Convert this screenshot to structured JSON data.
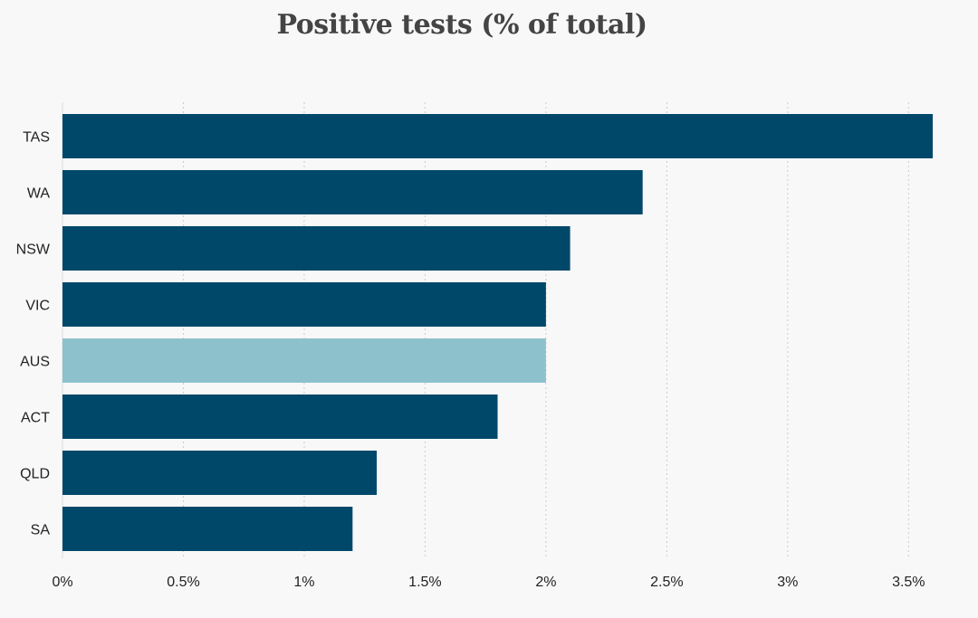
{
  "chart_data": {
    "type": "bar",
    "orientation": "horizontal",
    "title": "Positive tests (% of total)",
    "xlabel": "",
    "ylabel": "",
    "categories": [
      "TAS",
      "WA",
      "NSW",
      "VIC",
      "AUS",
      "ACT",
      "QLD",
      "SA"
    ],
    "values": [
      3.6,
      2.4,
      2.1,
      2.0,
      2.0,
      1.8,
      1.3,
      1.2
    ],
    "highlight": "AUS",
    "colors": {
      "bar": "#00486a",
      "highlight": "#8dc2cc",
      "grid": "#cccccc"
    },
    "xlim": [
      0,
      3.6
    ],
    "xticks": [
      {
        "value": 0,
        "label": "0%"
      },
      {
        "value": 0.5,
        "label": "0.5%"
      },
      {
        "value": 1,
        "label": "1%"
      },
      {
        "value": 1.5,
        "label": "1.5%"
      },
      {
        "value": 2,
        "label": "2%"
      },
      {
        "value": 2.5,
        "label": "2.5%"
      },
      {
        "value": 3,
        "label": "3%"
      },
      {
        "value": 3.5,
        "label": "3.5%"
      }
    ],
    "grid": true
  }
}
